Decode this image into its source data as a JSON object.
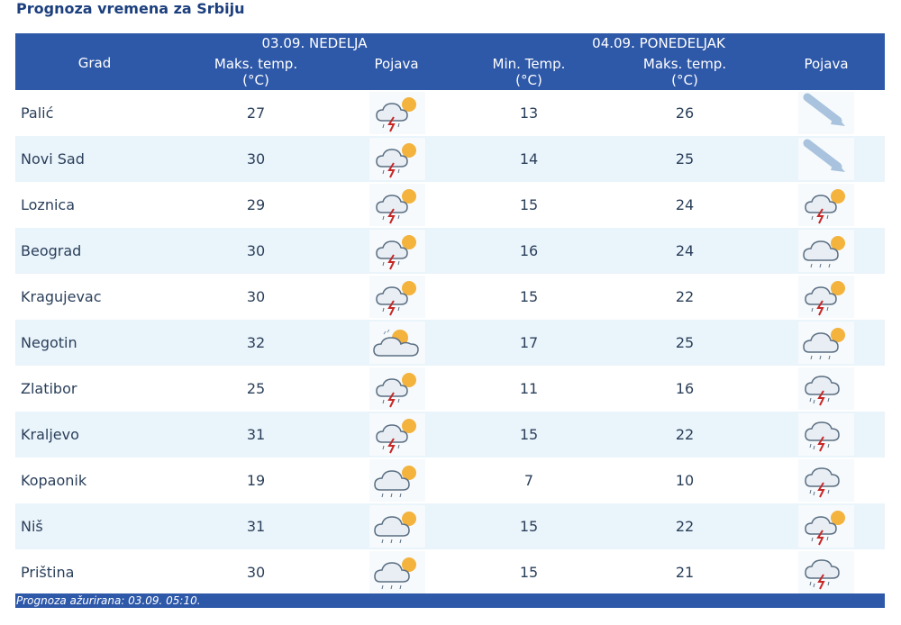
{
  "title": "Prognoza vremena za Srbiju",
  "header": {
    "city_label": "Grad",
    "day1": "03.09. NEDELJA",
    "day2": "04.09. PONEDELJAK",
    "max_temp_1": "Maks. temp.",
    "unit_1": "(°C)",
    "phenomenon_1": "Pojava",
    "min_temp_2": "Min. Temp.",
    "unit_min_2": "(°C)",
    "max_temp_2": "Maks. temp.",
    "unit_max_2": "(°C)",
    "phenomenon_2": "Pojava"
  },
  "rows": [
    {
      "city": "Palić",
      "max1": "27",
      "icon1": "storm-sun-icon",
      "min2": "13",
      "max2": "26",
      "icon2": "wind-arrow-icon"
    },
    {
      "city": "Novi Sad",
      "max1": "30",
      "icon1": "storm-sun-icon",
      "min2": "14",
      "max2": "25",
      "icon2": "wind-arrow-icon"
    },
    {
      "city": "Loznica",
      "max1": "29",
      "icon1": "storm-sun-icon",
      "min2": "15",
      "max2": "24",
      "icon2": "storm-sun-icon"
    },
    {
      "city": "Beograd",
      "max1": "30",
      "icon1": "storm-sun-icon",
      "min2": "16",
      "max2": "24",
      "icon2": "cloud-rain-sun-icon"
    },
    {
      "city": "Kragujevac",
      "max1": "30",
      "icon1": "storm-sun-icon",
      "min2": "15",
      "max2": "22",
      "icon2": "storm-sun-icon"
    },
    {
      "city": "Negotin",
      "max1": "32",
      "icon1": "partly-cloudy-icon",
      "min2": "17",
      "max2": "25",
      "icon2": "cloud-rain-sun-icon"
    },
    {
      "city": "Zlatibor",
      "max1": "25",
      "icon1": "storm-sun-icon",
      "min2": "11",
      "max2": "16",
      "icon2": "storm-cloud-icon"
    },
    {
      "city": "Kraljevo",
      "max1": "31",
      "icon1": "storm-sun-icon",
      "min2": "15",
      "max2": "22",
      "icon2": "storm-cloud-icon"
    },
    {
      "city": "Kopaonik",
      "max1": "19",
      "icon1": "cloud-rain-sun-icon",
      "min2": "7",
      "max2": "10",
      "icon2": "storm-cloud-icon"
    },
    {
      "city": "Niš",
      "max1": "31",
      "icon1": "cloud-rain-sun-icon",
      "min2": "15",
      "max2": "22",
      "icon2": "storm-sun-icon"
    },
    {
      "city": "Priština",
      "max1": "30",
      "icon1": "cloud-rain-sun-icon",
      "min2": "15",
      "max2": "21",
      "icon2": "storm-cloud-icon"
    }
  ],
  "footer": "Prognoza ažurirana:  03.09. 05:10.",
  "colors": {
    "header_bg": "#2e58a8",
    "alt_row": "#eaf4fb",
    "title": "#1c3f7e"
  }
}
